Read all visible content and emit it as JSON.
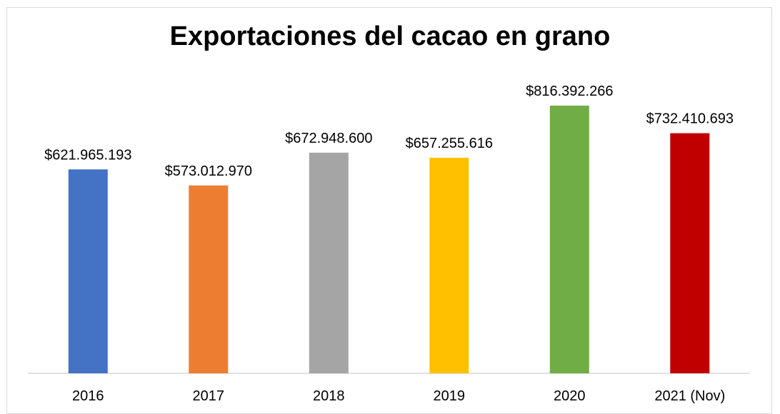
{
  "chart_data": {
    "type": "bar",
    "title": "Exportaciones del cacao en grano",
    "xlabel": "",
    "ylabel": "",
    "categories": [
      "2016",
      "2017",
      "2018",
      "2019",
      "2020",
      "2021 (Nov)"
    ],
    "values": [
      621965193,
      573012970,
      672948600,
      657255616,
      816392266,
      732410693
    ],
    "value_labels": [
      "$621.965.193",
      "$573.012.970",
      "$672.948.600",
      "$657.255.616",
      "$816.392.266",
      "$732.410.693"
    ],
    "colors": [
      "#4472c4",
      "#ed7d31",
      "#a5a5a5",
      "#ffc000",
      "#70ad47",
      "#c00000"
    ],
    "ylim": [
      0,
      900000000
    ],
    "grid": false,
    "legend": "none"
  }
}
